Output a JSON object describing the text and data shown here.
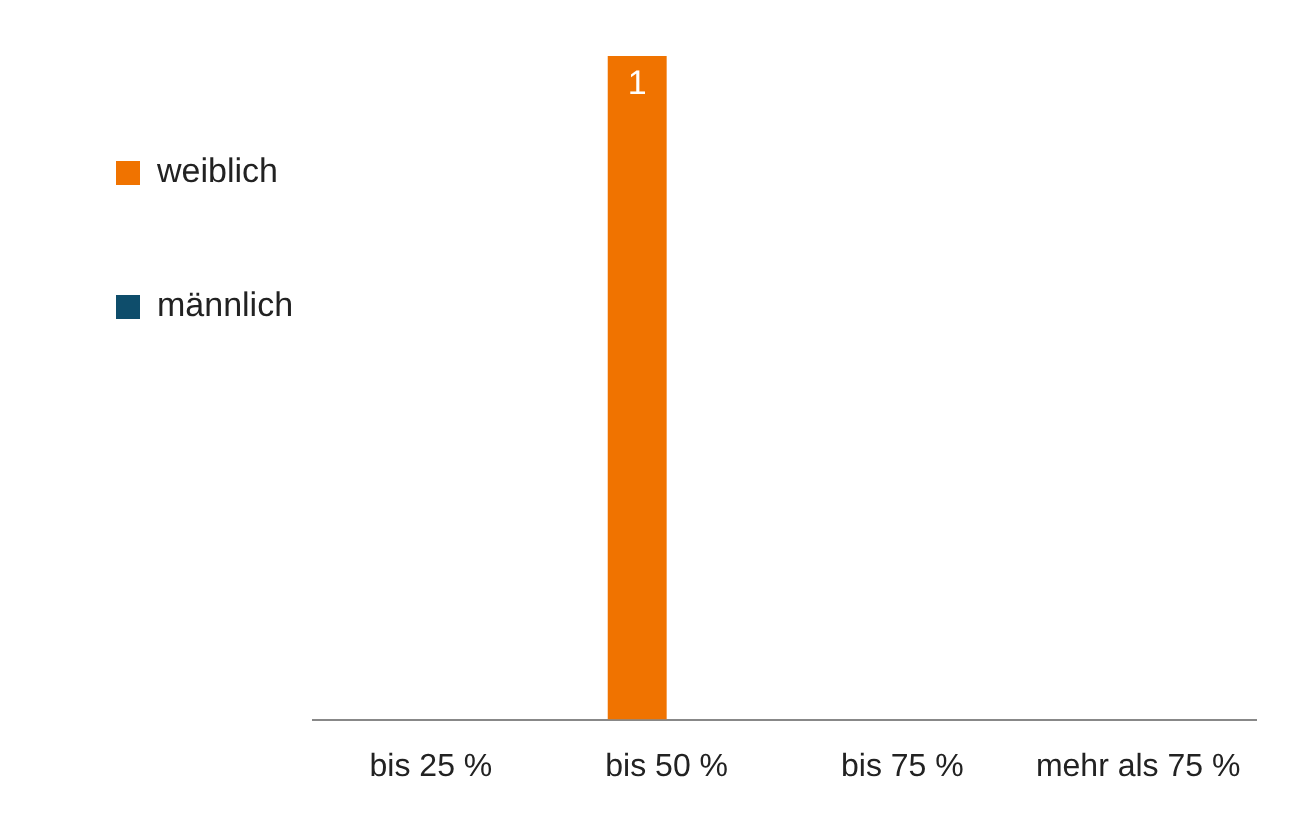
{
  "chart_data": {
    "type": "bar",
    "categories": [
      "bis 25 %",
      "bis 50 %",
      "bis 75 %",
      "mehr als 75 %"
    ],
    "series": [
      {
        "name": "weiblich",
        "color": "#f07300",
        "values": [
          0,
          1,
          0,
          0
        ],
        "value_labels": [
          null,
          "1",
          null,
          null
        ]
      },
      {
        "name": "männlich",
        "color": "#0e4d6b",
        "values": [
          0,
          0,
          0,
          0
        ]
      }
    ],
    "legend": "top left",
    "grid": false
  }
}
